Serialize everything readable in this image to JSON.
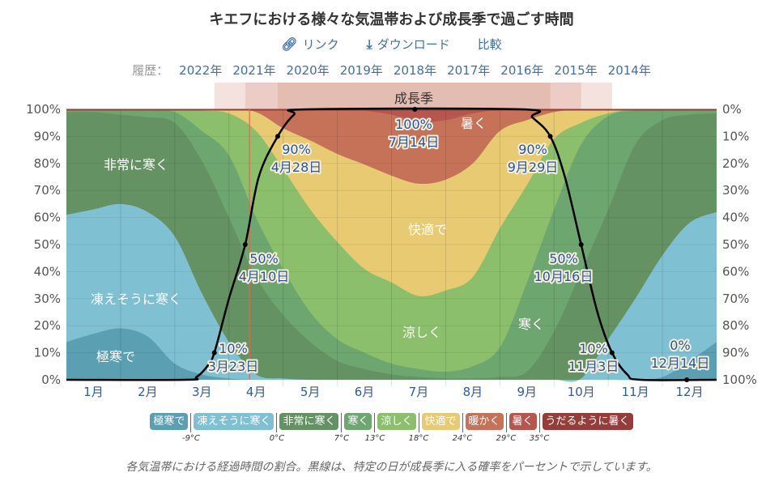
{
  "header": {
    "title": "キエフにおける様々な気温帯および成長季で過ごす時間",
    "link_label": "リンク",
    "download_label": "ダウンロード",
    "compare_label": "比較",
    "history_label": "履歴：",
    "years": [
      "2022年",
      "2021年",
      "2020年",
      "2019年",
      "2018年",
      "2017年",
      "2016年",
      "2015年",
      "2014年"
    ]
  },
  "chart_data": {
    "type": "area",
    "title": "キエフにおける様々な気温帯および成長季で過ごす時間",
    "x_unit": "month (0 = 1月1日, 12 = 12月31日)",
    "x_samples": [
      0,
      0.5,
      1,
      1.5,
      2,
      2.5,
      3,
      3.5,
      4,
      4.5,
      5,
      5.5,
      6,
      6.5,
      7,
      7.5,
      8,
      8.5,
      9,
      9.5,
      10,
      10.5,
      11,
      11.5,
      12
    ],
    "month_labels": [
      "1月",
      "2月",
      "3月",
      "4月",
      "5月",
      "6月",
      "7月",
      "8月",
      "9月",
      "10月",
      "11月",
      "12月"
    ],
    "left_ticks": [
      "0%",
      "10%",
      "20%",
      "30%",
      "40%",
      "50%",
      "60%",
      "70%",
      "80%",
      "90%",
      "100%"
    ],
    "right_ticks": [
      "100%",
      "90%",
      "80%",
      "70%",
      "60%",
      "50%",
      "40%",
      "30%",
      "20%",
      "10%",
      "0%"
    ],
    "ylim": [
      0,
      100
    ],
    "grid": true,
    "bands": [
      {
        "name": "極寒で",
        "color": "#5b9fb3",
        "cumulative_top": [
          14,
          17,
          19,
          16,
          6,
          2,
          0.5,
          0,
          0,
          0,
          0,
          0,
          0,
          0,
          0,
          0,
          0,
          0,
          0,
          0,
          0,
          0,
          1,
          7,
          14
        ]
      },
      {
        "name": "凍えそうに寒く",
        "color": "#80c0d3",
        "cumulative_top": [
          61,
          63,
          65,
          62,
          53,
          32,
          14,
          2,
          0.5,
          0,
          0,
          0,
          0,
          0,
          0,
          0,
          0,
          0,
          0,
          0.5,
          15,
          30,
          46,
          58,
          62
        ]
      },
      {
        "name": "非常に寒く",
        "color": "#659263",
        "cumulative_top": [
          99,
          99,
          98,
          97,
          95,
          81,
          60,
          38,
          24,
          14,
          7,
          4,
          2,
          1,
          0.5,
          0.5,
          1,
          3,
          18,
          40,
          63,
          87,
          96,
          98,
          98.5
        ]
      },
      {
        "name": "寒く",
        "color": "#6ea670",
        "cumulative_top": [
          100,
          100,
          99.5,
          99.5,
          99,
          92,
          83,
          60,
          41,
          25,
          15,
          10,
          6,
          4,
          3,
          5,
          12,
          36,
          63,
          87,
          97.5,
          99.5,
          100,
          100,
          100
        ]
      },
      {
        "name": "涼しく",
        "color": "#8bbf6c",
        "cumulative_top": [
          100,
          100,
          100,
          100,
          100,
          99.5,
          98.5,
          92,
          78,
          63,
          51,
          41,
          36,
          31,
          33,
          38,
          56,
          72,
          89,
          95,
          98.5,
          100,
          100,
          100,
          100
        ]
      },
      {
        "name": "快適で",
        "color": "#e7ca72",
        "cumulative_top": [
          100,
          100,
          100,
          100,
          100,
          100,
          100,
          99,
          93,
          88.5,
          83.5,
          79.6,
          75.5,
          72.5,
          74,
          80,
          92,
          96,
          99,
          100,
          100,
          100,
          100,
          100,
          100
        ]
      },
      {
        "name": "暖かく",
        "color": "#c67259",
        "cumulative_top": [
          100,
          100,
          100,
          100,
          100,
          100,
          100,
          100,
          100,
          100,
          100,
          99.5,
          98,
          95.5,
          96,
          98.5,
          99.8,
          100,
          100,
          100,
          100,
          100,
          100,
          100,
          100
        ]
      },
      {
        "name": "暑く",
        "color": "#b5574f",
        "cumulative_top": [
          100,
          100,
          100,
          100,
          100,
          100,
          100,
          100,
          100,
          100,
          100,
          100,
          100,
          100,
          100,
          100,
          100,
          100,
          100,
          100,
          100,
          100,
          100,
          100,
          100
        ]
      },
      {
        "name": "うだるように暑く",
        "color": "#963c39",
        "cumulative_top": [
          100,
          100,
          100,
          100,
          100,
          100,
          100,
          100,
          100,
          100,
          100,
          100,
          100,
          100,
          100,
          100,
          100,
          100,
          100,
          100,
          100,
          100,
          100,
          100,
          100
        ]
      }
    ],
    "band_labels": [
      "非常に寒く",
      "凍えそうに寒く",
      "極寒で",
      "快適で",
      "涼しく",
      "寒く",
      "暑く"
    ],
    "growing_season": {
      "label": "成長季",
      "curve": [
        [
          0,
          0
        ],
        [
          2.2,
          0
        ],
        [
          2.4,
          1
        ],
        [
          2.6,
          5
        ],
        [
          2.73,
          10
        ],
        [
          3.0,
          30
        ],
        [
          3.3,
          50
        ],
        [
          3.55,
          75
        ],
        [
          3.9,
          90
        ],
        [
          4.2,
          98
        ],
        [
          4.45,
          100
        ],
        [
          8.4,
          100
        ],
        [
          8.6,
          97
        ],
        [
          8.93,
          90
        ],
        [
          9.2,
          75
        ],
        [
          9.5,
          50
        ],
        [
          9.8,
          25
        ],
        [
          10.07,
          10
        ],
        [
          10.35,
          2
        ],
        [
          10.6,
          0
        ],
        [
          12,
          0
        ]
      ],
      "annotations": [
        {
          "pct": "10%",
          "date": "3月23日",
          "x": 2.73,
          "y": 10
        },
        {
          "pct": "50%",
          "date": "4月10日",
          "x": 3.3,
          "y": 50
        },
        {
          "pct": "90%",
          "date": "4月28日",
          "x": 3.9,
          "y": 90
        },
        {
          "pct": "100%",
          "date": "7月14日",
          "x": 6.43,
          "y": 100
        },
        {
          "pct": "90%",
          "date": "9月29日",
          "x": 8.93,
          "y": 90
        },
        {
          "pct": "50%",
          "date": "10月16日",
          "x": 9.5,
          "y": 50
        },
        {
          "pct": "10%",
          "date": "11月3日",
          "x": 10.07,
          "y": 10
        },
        {
          "pct": "0%",
          "date": "12月14日",
          "x": 11.45,
          "y": 0
        }
      ],
      "range_10_90": [
        [
          2.73,
          10.07
        ],
        [
          3.3,
          9.5
        ],
        [
          3.9,
          8.93
        ]
      ]
    },
    "today_marker_month": 3.38
  },
  "legend": {
    "items": [
      {
        "label": "極寒で",
        "color": "#5b9fb3"
      },
      {
        "label": "凍えそうに寒く",
        "color": "#80c0d3"
      },
      {
        "label": "非常に寒く",
        "color": "#659263"
      },
      {
        "label": "寒く",
        "color": "#6ea670"
      },
      {
        "label": "涼しく",
        "color": "#8bbf6c"
      },
      {
        "label": "快適で",
        "color": "#e7ca72"
      },
      {
        "label": "暖かく",
        "color": "#c67259"
      },
      {
        "label": "暑く",
        "color": "#b5574f"
      },
      {
        "label": "うだるように暑く",
        "color": "#963c39"
      }
    ],
    "thresholds": [
      "-9°C",
      "0°C",
      "7°C",
      "13°C",
      "18°C",
      "24°C",
      "29°C",
      "35°C"
    ]
  },
  "caption": "各気温帯における経過時間の割合。黒線は、特定の日が成長季に入る確率をパーセントで示しています。"
}
